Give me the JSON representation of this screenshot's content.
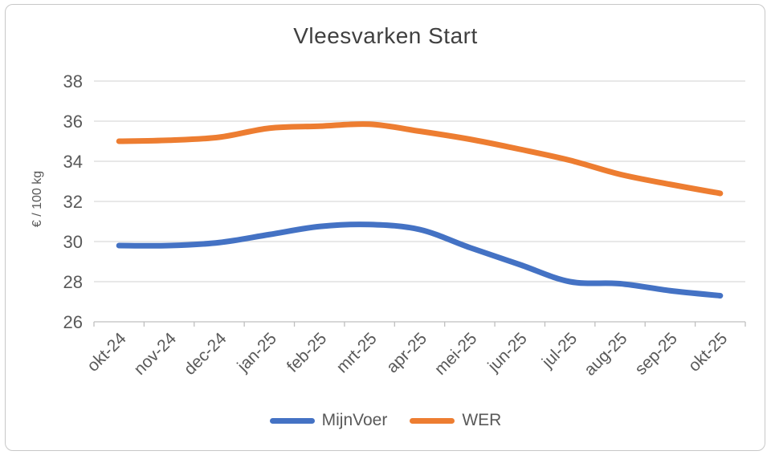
{
  "chart_data": {
    "type": "line",
    "title": "Vleesvarken Start",
    "ylabel": "€ / 100 kg",
    "xlabel": "",
    "ylim": [
      26,
      38
    ],
    "ytick_step": 2,
    "grid": "horizontal",
    "legend_position": "bottom",
    "line_style": "smooth",
    "categories": [
      "okt-24",
      "nov-24",
      "dec-24",
      "jan-25",
      "feb-25",
      "mrt-25",
      "apr-25",
      "mei-25",
      "jun-25",
      "jul-25",
      "aug-25",
      "sep-25",
      "okt-25"
    ],
    "series": [
      {
        "name": "MijnVoer",
        "color": "#4472C4",
        "values": [
          29.8,
          29.8,
          29.95,
          30.35,
          30.75,
          30.85,
          30.6,
          29.7,
          28.85,
          28.0,
          27.9,
          27.55,
          27.3
        ]
      },
      {
        "name": "WER",
        "color": "#ED7D31",
        "values": [
          35.0,
          35.05,
          35.2,
          35.65,
          35.75,
          35.85,
          35.5,
          35.1,
          34.6,
          34.05,
          33.35,
          32.85,
          32.4
        ]
      }
    ],
    "colors": {
      "title_text": "#404040",
      "axis_text": "#595959",
      "gridline": "#d9d9d9",
      "axis_line": "#bfbfbf",
      "background": "#ffffff"
    }
  }
}
